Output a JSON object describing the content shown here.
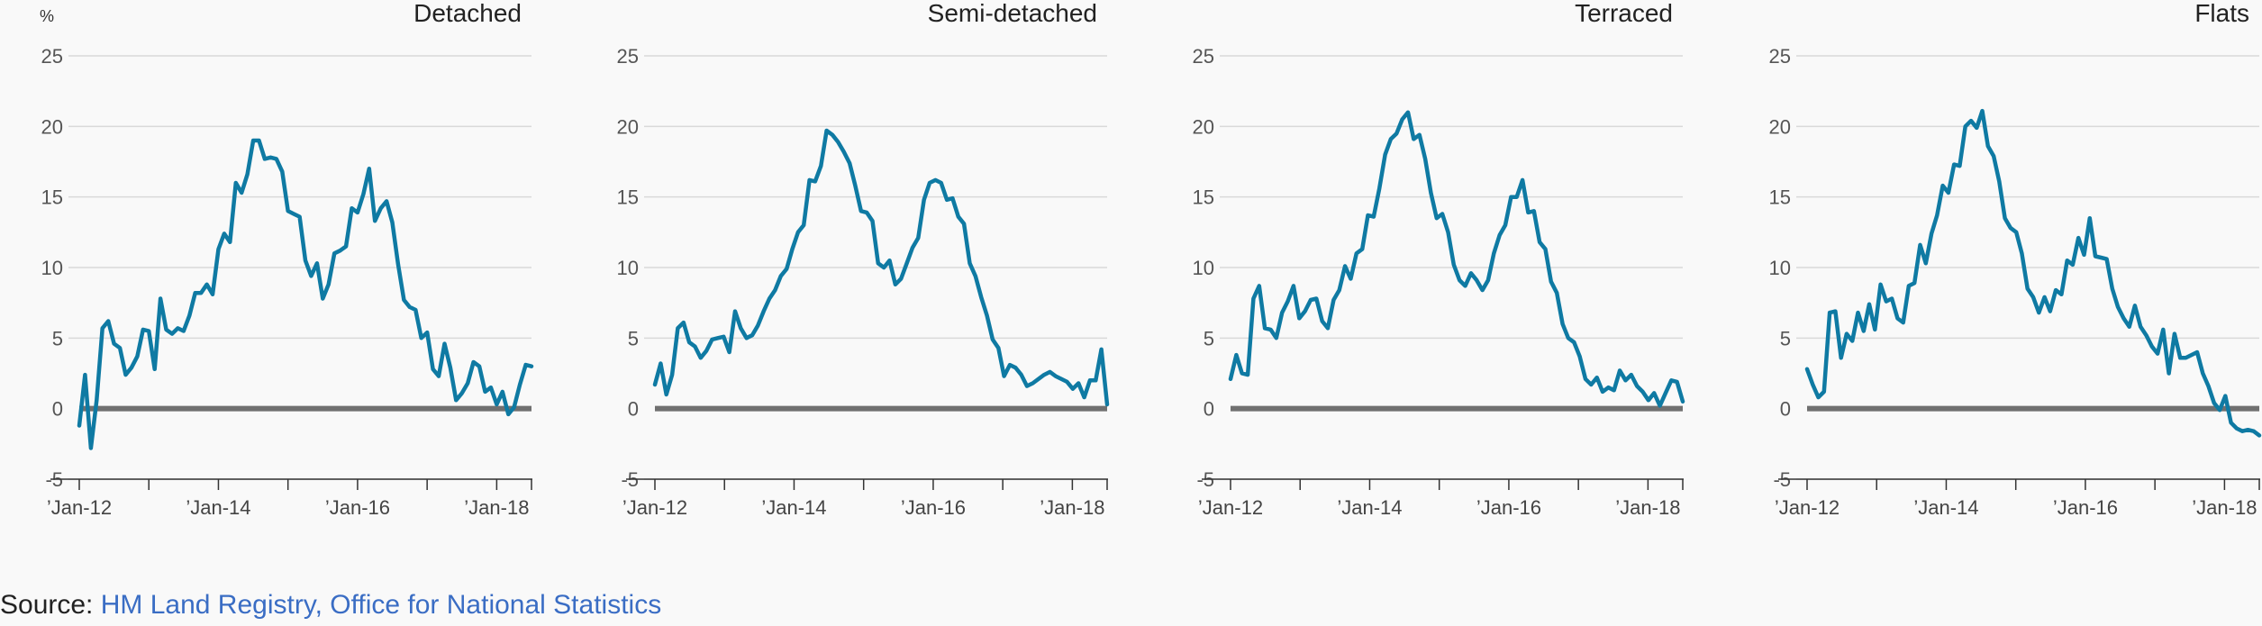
{
  "unit_label": "%",
  "source": {
    "prefix": "Source:",
    "link_text": "HM Land Registry, Office for National Statistics"
  },
  "colors": {
    "line": "#0f7aa3",
    "zero": "#707070",
    "grid": "#d9d9d9",
    "axis": "#333333"
  },
  "chart_data": [
    {
      "type": "line",
      "title": "Detached",
      "ylim": [
        -5,
        25
      ],
      "yticks": [
        -5,
        0,
        5,
        10,
        15,
        20,
        25
      ],
      "xticks": [
        {
          "label": "Jan-12",
          "x": 0
        },
        {
          "label": "Jan-14",
          "x": 24
        },
        {
          "label": "Jan-16",
          "x": 48
        },
        {
          "label": "Jan-18",
          "x": 72
        }
      ],
      "x_range": [
        0,
        78
      ],
      "series": [
        {
          "values": [
            -1.2,
            2.4,
            -2.8,
            0.6,
            5.7,
            6.2,
            4.6,
            4.3,
            2.4,
            2.9,
            3.7,
            5.6,
            5.5,
            2.8,
            7.8,
            5.6,
            5.3,
            5.7,
            5.5,
            6.6,
            8.2,
            8.2,
            8.8,
            8.1,
            11.3,
            12.4,
            11.8,
            16.0,
            15.3,
            16.6,
            19.0,
            19.0,
            17.7,
            17.8,
            17.7,
            16.8,
            14.0,
            13.8,
            13.6,
            10.5,
            9.4,
            10.3,
            7.8,
            8.8,
            11.0,
            11.2,
            11.5,
            14.2,
            13.9,
            15.2,
            17.0,
            13.3,
            14.2,
            14.7,
            13.2,
            10.2,
            7.7,
            7.2,
            7.0,
            5.0,
            5.4,
            2.8,
            2.3,
            4.6,
            2.9,
            0.6,
            1.1,
            1.8,
            3.3,
            3.0,
            1.2,
            1.5,
            0.3,
            1.2,
            -0.4,
            0.1,
            1.7,
            3.1,
            3.0
          ]
        }
      ]
    },
    {
      "type": "line",
      "title": "Semi-detached",
      "ylim": [
        -5,
        25
      ],
      "yticks": [
        -5,
        0,
        5,
        10,
        15,
        20,
        25
      ],
      "xticks": [
        {
          "label": "Jan-12",
          "x": 0
        },
        {
          "label": "Jan-14",
          "x": 24
        },
        {
          "label": "Jan-16",
          "x": 48
        },
        {
          "label": "Jan-18",
          "x": 72
        }
      ],
      "x_range": [
        0,
        78
      ],
      "series": [
        {
          "values": [
            1.7,
            3.2,
            1.0,
            2.4,
            5.7,
            6.1,
            4.7,
            4.4,
            3.6,
            4.1,
            4.9,
            5.0,
            5.1,
            4.0,
            6.9,
            5.7,
            5.0,
            5.2,
            5.9,
            6.9,
            7.8,
            8.4,
            9.4,
            9.9,
            11.3,
            12.5,
            13.0,
            16.2,
            16.1,
            17.2,
            19.7,
            19.4,
            18.9,
            18.2,
            17.4,
            15.8,
            14.0,
            13.9,
            13.3,
            10.3,
            10.0,
            10.5,
            8.8,
            9.2,
            10.3,
            11.4,
            12.1,
            14.8,
            16.0,
            16.2,
            16.0,
            14.8,
            14.9,
            13.6,
            13.1,
            10.3,
            9.4,
            7.9,
            6.6,
            4.9,
            4.3,
            2.3,
            3.1,
            2.9,
            2.4,
            1.6,
            1.8,
            2.1,
            2.4,
            2.6,
            2.3,
            2.1,
            1.9,
            1.4,
            1.8,
            0.8,
            2.0,
            2.0,
            4.2,
            0.3
          ]
        }
      ]
    },
    {
      "type": "line",
      "title": "Terraced",
      "ylim": [
        -5,
        25
      ],
      "yticks": [
        -5,
        0,
        5,
        10,
        15,
        20,
        25
      ],
      "xticks": [
        {
          "label": "Jan-12",
          "x": 0
        },
        {
          "label": "Jan-14",
          "x": 24
        },
        {
          "label": "Jan-16",
          "x": 48
        },
        {
          "label": "Jan-18",
          "x": 72
        }
      ],
      "x_range": [
        0,
        78
      ],
      "series": [
        {
          "values": [
            2.1,
            3.8,
            2.5,
            2.4,
            7.8,
            8.7,
            5.7,
            5.6,
            5.0,
            6.8,
            7.6,
            8.7,
            6.4,
            6.9,
            7.7,
            7.8,
            6.2,
            5.7,
            7.7,
            8.4,
            10.1,
            9.2,
            11.0,
            11.3,
            13.7,
            13.6,
            15.6,
            18.0,
            19.1,
            19.5,
            20.5,
            21.0,
            19.1,
            19.4,
            17.7,
            15.3,
            13.5,
            13.8,
            12.5,
            10.2,
            9.1,
            8.7,
            9.6,
            9.1,
            8.4,
            9.1,
            11.0,
            12.3,
            13.0,
            15.0,
            15.0,
            16.2,
            13.9,
            14.0,
            11.8,
            11.3,
            9.0,
            8.2,
            6.0,
            5.0,
            4.7,
            3.7,
            2.1,
            1.7,
            2.2,
            1.2,
            1.5,
            1.3,
            2.7,
            2.0,
            2.4,
            1.6,
            1.2,
            0.6,
            1.1,
            0.2,
            1.1,
            2.0,
            1.9,
            0.5
          ]
        }
      ]
    },
    {
      "type": "line",
      "title": "Flats",
      "ylim": [
        -5,
        25
      ],
      "yticks": [
        -5,
        0,
        5,
        10,
        15,
        20,
        25
      ],
      "xticks": [
        {
          "label": "Jan-12",
          "x": 0
        },
        {
          "label": "Jan-14",
          "x": 24
        },
        {
          "label": "Jan-16",
          "x": 48
        },
        {
          "label": "Jan-18",
          "x": 72
        }
      ],
      "x_range": [
        0,
        78
      ],
      "series": [
        {
          "values": [
            2.8,
            1.7,
            0.8,
            1.2,
            6.8,
            6.9,
            3.6,
            5.3,
            4.8,
            6.8,
            5.5,
            7.4,
            5.6,
            8.8,
            7.6,
            7.8,
            6.4,
            6.1,
            8.7,
            8.9,
            11.6,
            10.3,
            12.4,
            13.7,
            15.8,
            15.3,
            17.3,
            17.2,
            20.0,
            20.4,
            19.9,
            21.1,
            18.6,
            17.9,
            16.1,
            13.5,
            12.8,
            12.5,
            11.0,
            8.5,
            7.9,
            6.8,
            7.9,
            6.9,
            8.4,
            8.1,
            10.5,
            10.2,
            12.1,
            10.9,
            13.5,
            10.8,
            10.7,
            10.6,
            8.5,
            7.2,
            6.4,
            5.8,
            7.3,
            5.8,
            5.2,
            4.4,
            3.9,
            5.6,
            2.5,
            5.3,
            3.6,
            3.6,
            3.8,
            4.0,
            2.5,
            1.6,
            0.4,
            -0.1,
            0.9,
            -1.0,
            -1.4,
            -1.6,
            -1.5,
            -1.6,
            -1.9
          ]
        }
      ]
    }
  ]
}
